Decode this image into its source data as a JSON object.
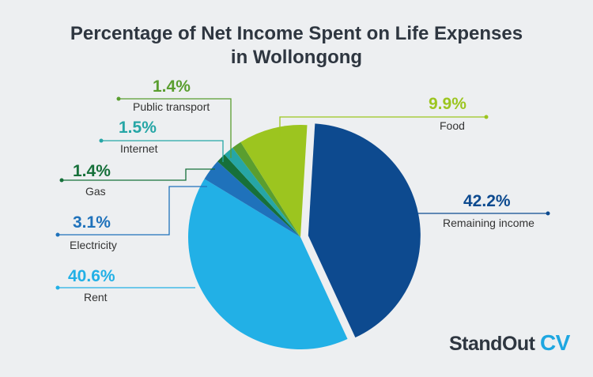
{
  "chart_data": {
    "type": "pie",
    "title_line1": "Percentage of Net Income Spent on Life Expenses",
    "title_line2": "in Wollongong",
    "slices": [
      {
        "name": "Remaining income",
        "value": 42.2,
        "label": "42.2%",
        "color": "#0d4a8f"
      },
      {
        "name": "Rent",
        "value": 40.6,
        "label": "40.6%",
        "color": "#22b0e6"
      },
      {
        "name": "Electricity",
        "value": 3.1,
        "label": "3.1%",
        "color": "#1f72bb"
      },
      {
        "name": "Gas",
        "value": 1.4,
        "label": "1.4%",
        "color": "#16703a"
      },
      {
        "name": "Internet",
        "value": 1.5,
        "label": "1.5%",
        "color": "#26a6a6"
      },
      {
        "name": "Public transport",
        "value": 1.4,
        "label": "1.4%",
        "color": "#5a9e2f"
      },
      {
        "name": "Food",
        "value": 9.9,
        "label": "9.9%",
        "color": "#9cc51f"
      }
    ]
  },
  "brand": {
    "name": "StandOut",
    "suffix": "CV"
  }
}
